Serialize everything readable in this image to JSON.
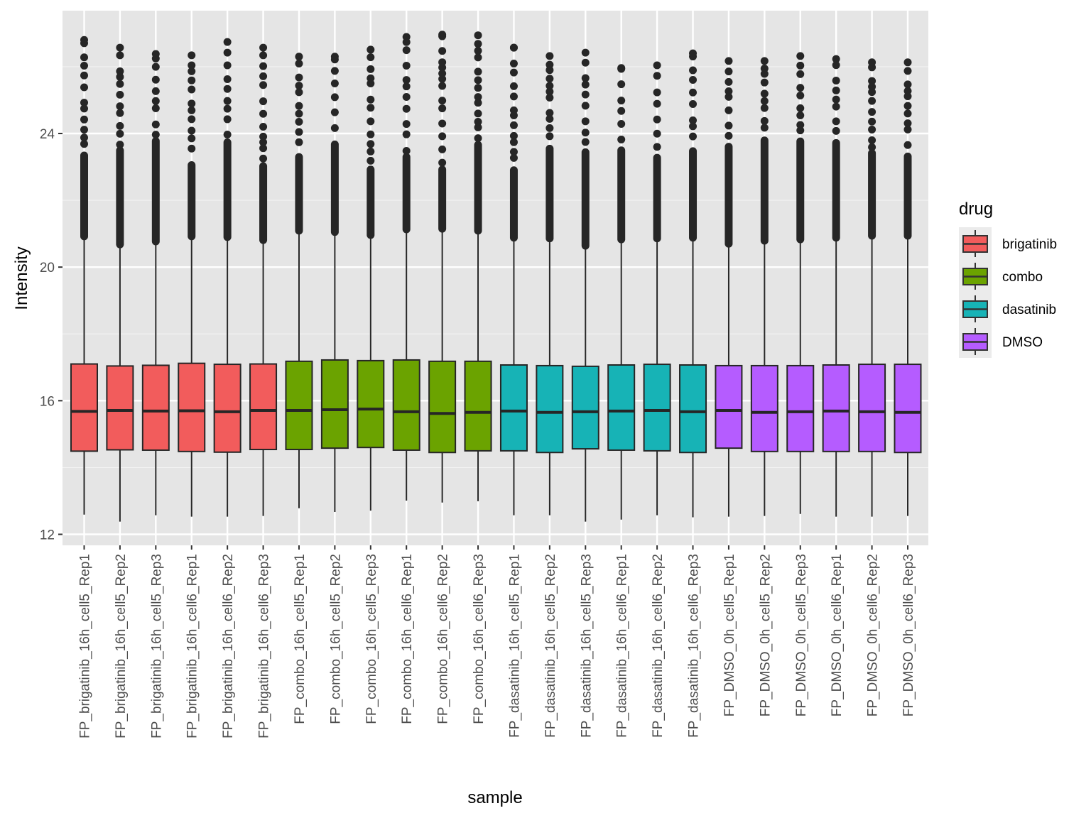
{
  "chart_data": {
    "type": "boxplot",
    "title": "",
    "xlabel": "sample",
    "ylabel": "Intensity",
    "ylim": [
      11.7,
      27.4
    ],
    "yticks": [
      12,
      16,
      20,
      24
    ],
    "ytick_labels": [
      "12",
      "16",
      "20",
      "24"
    ],
    "grid": true,
    "legend": {
      "title": "drug",
      "position": "right",
      "entries": [
        {
          "label": "brigatinib",
          "color": "#F8766D"
        },
        {
          "label": "combo",
          "color": "#7CAE00"
        },
        {
          "label": "dasatinib",
          "color": "#00BFC4"
        },
        {
          "label": "DMSO",
          "color": "#C77CFF"
        }
      ]
    },
    "colors": {
      "brigatinib": "#F25C5C",
      "combo": "#6BA300",
      "dasatinib": "#17B3B6",
      "DMSO": "#B55CFF",
      "panel": "#E5E5E5",
      "grid": "#FFFFFF",
      "outline": "#262626"
    },
    "categories": [
      "FP_brigatinib_16h_cell5_Rep1",
      "FP_brigatinib_16h_cell5_Rep2",
      "FP_brigatinib_16h_cell5_Rep3",
      "FP_brigatinib_16h_cell6_Rep1",
      "FP_brigatinib_16h_cell6_Rep2",
      "FP_brigatinib_16h_cell6_Rep3",
      "FP_combo_16h_cell5_Rep1",
      "FP_combo_16h_cell5_Rep2",
      "FP_combo_16h_cell5_Rep3",
      "FP_combo_16h_cell6_Rep1",
      "FP_combo_16h_cell6_Rep2",
      "FP_combo_16h_cell6_Rep3",
      "FP_dasatinib_16h_cell5_Rep1",
      "FP_dasatinib_16h_cell5_Rep2",
      "FP_dasatinib_16h_cell5_Rep3",
      "FP_dasatinib_16h_cell6_Rep1",
      "FP_dasatinib_16h_cell6_Rep2",
      "FP_dasatinib_16h_cell6_Rep3",
      "FP_DMSO_0h_cell5_Rep1",
      "FP_DMSO_0h_cell5_Rep2",
      "FP_DMSO_0h_cell5_Rep3",
      "FP_DMSO_0h_cell6_Rep1",
      "FP_DMSO_0h_cell6_Rep2",
      "FP_DMSO_0h_cell6_Rep3"
    ],
    "series": [
      {
        "sample": "FP_brigatinib_16h_cell5_Rep1",
        "drug": "brigatinib",
        "min": 12.59,
        "q1": 14.49,
        "median": 15.68,
        "q3": 17.1,
        "upper_whisker": 20.92,
        "max_outlier": 26.8
      },
      {
        "sample": "FP_brigatinib_16h_cell5_Rep2",
        "drug": "brigatinib",
        "min": 12.38,
        "q1": 14.53,
        "median": 15.71,
        "q3": 17.04,
        "upper_whisker": 20.68,
        "max_outlier": 26.57
      },
      {
        "sample": "FP_brigatinib_16h_cell5_Rep3",
        "drug": "brigatinib",
        "min": 12.57,
        "q1": 14.52,
        "median": 15.69,
        "q3": 17.06,
        "upper_whisker": 20.77,
        "max_outlier": 26.38
      },
      {
        "sample": "FP_brigatinib_16h_cell6_Rep1",
        "drug": "brigatinib",
        "min": 12.53,
        "q1": 14.48,
        "median": 15.7,
        "q3": 17.12,
        "upper_whisker": 20.92,
        "max_outlier": 26.34
      },
      {
        "sample": "FP_brigatinib_16h_cell6_Rep2",
        "drug": "brigatinib",
        "min": 12.53,
        "q1": 14.46,
        "median": 15.67,
        "q3": 17.09,
        "upper_whisker": 20.9,
        "max_outlier": 26.74
      },
      {
        "sample": "FP_brigatinib_16h_cell6_Rep3",
        "drug": "brigatinib",
        "min": 12.55,
        "q1": 14.54,
        "median": 15.71,
        "q3": 17.1,
        "upper_whisker": 20.81,
        "max_outlier": 26.57
      },
      {
        "sample": "FP_combo_16h_cell5_Rep1",
        "drug": "combo",
        "min": 12.78,
        "q1": 14.54,
        "median": 15.71,
        "q3": 17.18,
        "upper_whisker": 21.09,
        "max_outlier": 26.3
      },
      {
        "sample": "FP_combo_16h_cell5_Rep2",
        "drug": "combo",
        "min": 12.67,
        "q1": 14.58,
        "median": 15.73,
        "q3": 17.22,
        "upper_whisker": 21.05,
        "max_outlier": 26.3
      },
      {
        "sample": "FP_combo_16h_cell5_Rep3",
        "drug": "combo",
        "min": 12.71,
        "q1": 14.6,
        "median": 15.75,
        "q3": 17.2,
        "upper_whisker": 20.96,
        "max_outlier": 26.51
      },
      {
        "sample": "FP_combo_16h_cell6_Rep1",
        "drug": "combo",
        "min": 13.01,
        "q1": 14.52,
        "median": 15.67,
        "q3": 17.22,
        "upper_whisker": 21.13,
        "max_outlier": 26.89
      },
      {
        "sample": "FP_combo_16h_cell6_Rep2",
        "drug": "combo",
        "min": 12.95,
        "q1": 14.45,
        "median": 15.62,
        "q3": 17.18,
        "upper_whisker": 21.15,
        "max_outlier": 26.96
      },
      {
        "sample": "FP_combo_16h_cell6_Rep3",
        "drug": "combo",
        "min": 12.99,
        "q1": 14.5,
        "median": 15.65,
        "q3": 17.18,
        "upper_whisker": 21.09,
        "max_outlier": 26.94
      },
      {
        "sample": "FP_dasatinib_16h_cell5_Rep1",
        "drug": "dasatinib",
        "min": 12.57,
        "q1": 14.5,
        "median": 15.69,
        "q3": 17.07,
        "upper_whisker": 20.88,
        "max_outlier": 26.57
      },
      {
        "sample": "FP_dasatinib_16h_cell5_Rep2",
        "drug": "dasatinib",
        "min": 12.57,
        "q1": 14.45,
        "median": 15.65,
        "q3": 17.05,
        "upper_whisker": 20.86,
        "max_outlier": 26.32
      },
      {
        "sample": "FP_dasatinib_16h_cell5_Rep3",
        "drug": "dasatinib",
        "min": 12.38,
        "q1": 14.56,
        "median": 15.67,
        "q3": 17.03,
        "upper_whisker": 20.64,
        "max_outlier": 26.42
      },
      {
        "sample": "FP_dasatinib_16h_cell6_Rep1",
        "drug": "dasatinib",
        "min": 12.44,
        "q1": 14.52,
        "median": 15.69,
        "q3": 17.07,
        "upper_whisker": 20.83,
        "max_outlier": 25.96
      },
      {
        "sample": "FP_dasatinib_16h_cell6_Rep2",
        "drug": "dasatinib",
        "min": 12.57,
        "q1": 14.5,
        "median": 15.71,
        "q3": 17.09,
        "upper_whisker": 20.86,
        "max_outlier": 26.04
      },
      {
        "sample": "FP_dasatinib_16h_cell6_Rep3",
        "drug": "dasatinib",
        "min": 12.51,
        "q1": 14.45,
        "median": 15.67,
        "q3": 17.07,
        "upper_whisker": 20.88,
        "max_outlier": 26.4
      },
      {
        "sample": "FP_DMSO_0h_cell5_Rep1",
        "drug": "DMSO",
        "min": 12.53,
        "q1": 14.58,
        "median": 15.71,
        "q3": 17.05,
        "upper_whisker": 20.7,
        "max_outlier": 26.17
      },
      {
        "sample": "FP_DMSO_0h_cell5_Rep2",
        "drug": "DMSO",
        "min": 12.55,
        "q1": 14.48,
        "median": 15.65,
        "q3": 17.05,
        "upper_whisker": 20.79,
        "max_outlier": 26.17
      },
      {
        "sample": "FP_DMSO_0h_cell5_Rep3",
        "drug": "DMSO",
        "min": 12.61,
        "q1": 14.48,
        "median": 15.67,
        "q3": 17.05,
        "upper_whisker": 20.83,
        "max_outlier": 26.32
      },
      {
        "sample": "FP_DMSO_0h_cell6_Rep1",
        "drug": "DMSO",
        "min": 12.53,
        "q1": 14.48,
        "median": 15.69,
        "q3": 17.07,
        "upper_whisker": 20.88,
        "max_outlier": 26.23
      },
      {
        "sample": "FP_DMSO_0h_cell6_Rep2",
        "drug": "DMSO",
        "min": 12.53,
        "q1": 14.48,
        "median": 15.67,
        "q3": 17.09,
        "upper_whisker": 20.94,
        "max_outlier": 26.13
      },
      {
        "sample": "FP_DMSO_0h_cell6_Rep3",
        "drug": "DMSO",
        "min": 12.55,
        "q1": 14.45,
        "median": 15.65,
        "q3": 17.09,
        "upper_whisker": 20.94,
        "max_outlier": 26.13
      }
    ]
  }
}
